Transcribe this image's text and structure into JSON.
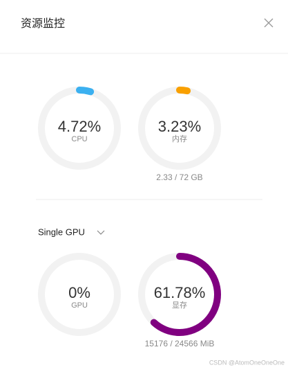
{
  "header": {
    "title": "资源监控"
  },
  "system": {
    "gauges": [
      {
        "value": 4.72,
        "value_label": "4.72%",
        "label": "CPU",
        "color": "#3bb0f0"
      },
      {
        "value": 3.23,
        "value_label": "3.23%",
        "label": "内存",
        "color": "#f9a000",
        "detail": "2.33 / 72 GB"
      }
    ]
  },
  "gpu": {
    "selector": "Single GPU",
    "gauges": [
      {
        "value": 0,
        "value_label": "0%",
        "label": "GPU",
        "color": "#3bb0f0"
      },
      {
        "value": 61.78,
        "value_label": "61.78%",
        "label": "显存",
        "color": "#800080",
        "detail": "15176 / 24566 MiB"
      }
    ]
  },
  "watermark": "CSDN @AtomOneOneOne"
}
